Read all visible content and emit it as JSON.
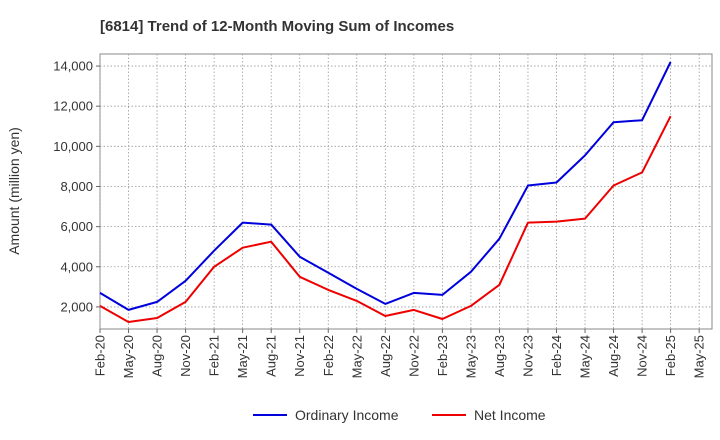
{
  "chart_data": {
    "type": "line",
    "title": "[6814]  Trend of 12-Month Moving Sum of Incomes",
    "xlabel": "",
    "ylabel": "Amount (million yen)",
    "ylim": [
      900,
      14600
    ],
    "yticks": [
      2000,
      4000,
      6000,
      8000,
      10000,
      12000,
      14000
    ],
    "ytick_labels": [
      "2,000",
      "4,000",
      "6,000",
      "8,000",
      "10,000",
      "12,000",
      "14,000"
    ],
    "categories": [
      "Feb-20",
      "May-20",
      "Aug-20",
      "Nov-20",
      "Feb-21",
      "May-21",
      "Aug-21",
      "Nov-21",
      "Feb-22",
      "May-22",
      "Aug-22",
      "Nov-22",
      "Feb-23",
      "May-23",
      "Aug-23",
      "Nov-23",
      "Feb-24",
      "May-24",
      "Aug-24",
      "Nov-24",
      "Feb-25",
      "May-25"
    ],
    "grid": true,
    "legend_position": "bottom-center",
    "series": [
      {
        "name": "Ordinary Income",
        "color": "#0000dd",
        "values": [
          2700,
          1850,
          2250,
          3300,
          4800,
          6200,
          6100,
          4500,
          3700,
          2900,
          2150,
          2700,
          2600,
          3750,
          5400,
          8050,
          8200,
          9550,
          11200,
          11300,
          14200,
          null
        ]
      },
      {
        "name": "Net Income",
        "color": "#ee0000",
        "values": [
          2050,
          1250,
          1450,
          2250,
          4000,
          4950,
          5250,
          3500,
          2850,
          2300,
          1550,
          1850,
          1400,
          2050,
          3100,
          6200,
          6250,
          6400,
          8050,
          8700,
          11500,
          null
        ]
      }
    ]
  }
}
